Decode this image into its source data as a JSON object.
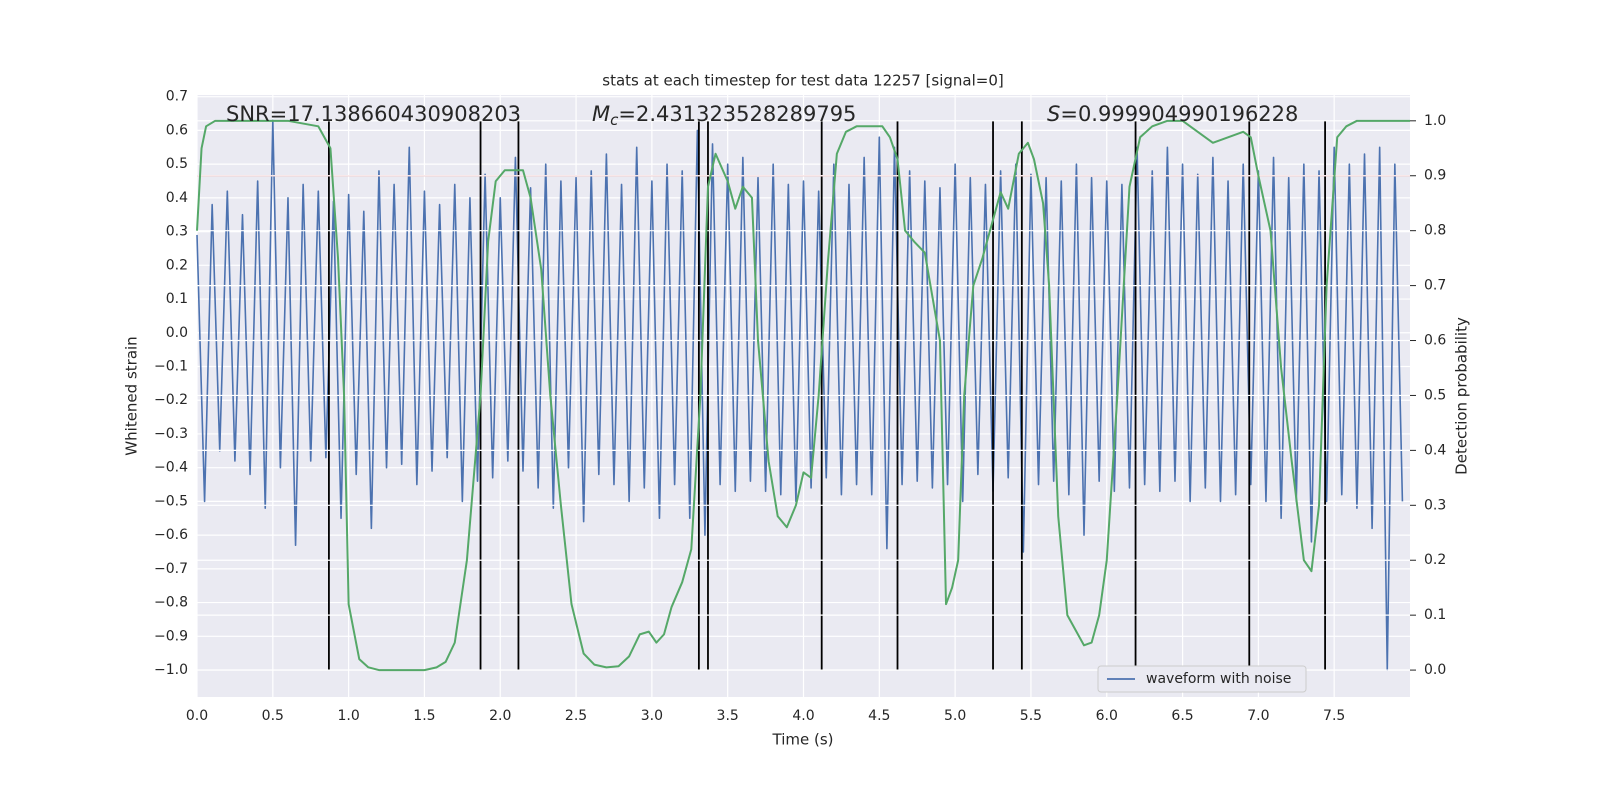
{
  "chart_data": {
    "type": "line",
    "title": "stats at each timestep for test data 12257 [signal=0]",
    "xlabel": "Time (s)",
    "ylabel": "Whitened strain",
    "y2label": "Detection probability",
    "annotations": [
      {
        "text": "SNR=17.138660430908203"
      },
      {
        "symbol": "M",
        "sub": "c",
        "text": "=2.431323528289795"
      },
      {
        "symbol": "S",
        "text": "=0.999904990196228"
      }
    ],
    "xlim": [
      0,
      8
    ],
    "xticks": [
      {
        "value": 0,
        "label": "0.0"
      },
      0.5,
      {
        "value": 1,
        "label": "1.0"
      },
      1.5,
      {
        "value": 2,
        "label": "2.0"
      },
      2.5,
      {
        "value": 3,
        "label": "3.0"
      },
      3.5,
      {
        "value": 4,
        "label": "4.0"
      },
      4.5,
      {
        "value": 5,
        "label": "5.0"
      },
      5.5,
      {
        "value": 6,
        "label": "6.0"
      },
      6.5,
      {
        "value": 7,
        "label": "7.0"
      },
      7.5
    ],
    "ylim": [
      -1.08,
      0.705
    ],
    "yticks": [
      {
        "value": -1,
        "label": "−1.0"
      },
      {
        "value": -0.9,
        "label": "−0.9"
      },
      {
        "value": -0.8,
        "label": "−0.8"
      },
      {
        "value": -0.7,
        "label": "−0.7"
      },
      {
        "value": -0.6,
        "label": "−0.6"
      },
      {
        "value": -0.5,
        "label": "−0.5"
      },
      {
        "value": -0.4,
        "label": "−0.4"
      },
      {
        "value": -0.3,
        "label": "−0.3"
      },
      {
        "value": -0.2,
        "label": "−0.2"
      },
      {
        "value": -0.1,
        "label": "−0.1"
      },
      {
        "value": 0,
        "label": "0.0"
      },
      0.1,
      0.2,
      0.3,
      0.4,
      0.5,
      0.6,
      0.7
    ],
    "y2lim": [
      -0.049,
      1.047
    ],
    "y2ticks": [
      {
        "value": 0,
        "label": "0.0"
      },
      0.1,
      0.2,
      0.3,
      0.4,
      0.5,
      0.6,
      0.7,
      0.8,
      0.9,
      {
        "value": 1,
        "label": "1.0"
      }
    ],
    "grid": true,
    "legend": "lower right",
    "series": [
      {
        "name": "waveform with noise",
        "color": "#4c72b0",
        "x": [
          0,
          0.05,
          0.1,
          0.15,
          0.2,
          0.25,
          0.3,
          0.35,
          0.4,
          0.45,
          0.5,
          0.55,
          0.6,
          0.65,
          0.7,
          0.75,
          0.8,
          0.85,
          0.9,
          0.95,
          1,
          1.05,
          1.1,
          1.15,
          1.2,
          1.25,
          1.3,
          1.35,
          1.4,
          1.45,
          1.5,
          1.55,
          1.6,
          1.65,
          1.7,
          1.75,
          1.8,
          1.85,
          1.9,
          1.95,
          2,
          2.05,
          2.1,
          2.15,
          2.2,
          2.25,
          2.3,
          2.35,
          2.4,
          2.45,
          2.5,
          2.55,
          2.6,
          2.65,
          2.7,
          2.75,
          2.8,
          2.85,
          2.9,
          2.95,
          3,
          3.05,
          3.1,
          3.15,
          3.2,
          3.25,
          3.3,
          3.35,
          3.4,
          3.45,
          3.5,
          3.55,
          3.6,
          3.65,
          3.7,
          3.75,
          3.8,
          3.85,
          3.9,
          3.95,
          4,
          4.05,
          4.1,
          4.15,
          4.2,
          4.25,
          4.3,
          4.35,
          4.4,
          4.45,
          4.5,
          4.55,
          4.6,
          4.65,
          4.7,
          4.75,
          4.8,
          4.85,
          4.9,
          4.95,
          5,
          5.05,
          5.1,
          5.15,
          5.2,
          5.25,
          5.3,
          5.35,
          5.4,
          5.45,
          5.5,
          5.55,
          5.6,
          5.65,
          5.7,
          5.75,
          5.8,
          5.85,
          5.9,
          5.95,
          6,
          6.05,
          6.1,
          6.15,
          6.2,
          6.25,
          6.3,
          6.35,
          6.4,
          6.45,
          6.5,
          6.55,
          6.6,
          6.65,
          6.7,
          6.75,
          6.8,
          6.85,
          6.9,
          6.95,
          7,
          7.05,
          7.1,
          7.15,
          7.2,
          7.25,
          7.3,
          7.35,
          7.4,
          7.45,
          7.5,
          7.55,
          7.6,
          7.65,
          7.7,
          7.75,
          7.8,
          7.85,
          7.9,
          7.95
        ],
        "values": [
          0.29,
          -0.5,
          0.38,
          -0.35,
          0.42,
          -0.38,
          0.35,
          -0.42,
          0.45,
          -0.52,
          0.63,
          -0.4,
          0.4,
          -0.63,
          0.44,
          -0.38,
          0.42,
          -0.37,
          0.39,
          -0.55,
          0.41,
          -0.42,
          0.36,
          -0.58,
          0.48,
          -0.4,
          0.44,
          -0.39,
          0.55,
          -0.45,
          0.42,
          -0.41,
          0.38,
          -0.37,
          0.44,
          -0.5,
          0.4,
          -0.44,
          0.47,
          -0.43,
          0.4,
          -0.38,
          0.52,
          -0.41,
          0.43,
          -0.46,
          0.5,
          -0.52,
          0.45,
          -0.4,
          0.46,
          -0.56,
          0.48,
          -0.42,
          0.53,
          -0.45,
          0.44,
          -0.5,
          0.55,
          -0.46,
          0.45,
          -0.55,
          0.5,
          -0.45,
          0.48,
          -0.55,
          0.6,
          -0.6,
          0.56,
          -0.45,
          0.5,
          -0.47,
          0.52,
          -0.44,
          0.46,
          -0.47,
          0.5,
          -0.48,
          0.44,
          -0.5,
          0.45,
          -0.46,
          0.42,
          -0.43,
          0.5,
          -0.48,
          0.44,
          -0.45,
          0.52,
          -0.48,
          0.58,
          -0.64,
          0.55,
          -0.45,
          0.48,
          -0.44,
          0.45,
          -0.46,
          0.43,
          -0.45,
          0.5,
          -0.5,
          0.46,
          -0.42,
          0.44,
          -0.47,
          0.48,
          -0.43,
          0.5,
          -0.65,
          0.47,
          -0.45,
          0.46,
          -0.44,
          0.45,
          -0.48,
          0.5,
          -0.6,
          0.46,
          -0.44,
          0.45,
          -0.47,
          0.44,
          -0.46,
          0.55,
          -0.45,
          0.48,
          -0.47,
          0.55,
          -0.44,
          0.5,
          -0.5,
          0.47,
          -0.46,
          0.52,
          -0.5,
          0.45,
          -0.48,
          0.5,
          -0.45,
          0.48,
          -0.5,
          0.52,
          -0.55,
          0.46,
          -0.5,
          0.5,
          -0.62,
          0.48,
          -0.5,
          0.55,
          -0.48,
          0.5,
          -0.52,
          0.53,
          -0.58,
          0.55,
          -1.0,
          0.5,
          -0.5
        ]
      },
      {
        "color": "#55a868",
        "axis": "y2",
        "x": [
          0,
          0.03,
          0.06,
          0.12,
          0.2,
          0.4,
          0.6,
          0.8,
          0.88,
          0.93,
          0.97,
          1,
          1.07,
          1.13,
          1.2,
          1.5,
          1.58,
          1.64,
          1.7,
          1.78,
          1.87,
          1.92,
          1.97,
          2.03,
          2.15,
          2.2,
          2.27,
          2.33,
          2.4,
          2.47,
          2.55,
          2.62,
          2.7,
          2.78,
          2.85,
          2.92,
          2.98,
          3.03,
          3.08,
          3.13,
          3.2,
          3.26,
          3.32,
          3.37,
          3.42,
          3.5,
          3.55,
          3.6,
          3.66,
          3.7,
          3.77,
          3.83,
          3.89,
          3.95,
          4,
          4.05,
          4.1,
          4.16,
          4.22,
          4.28,
          4.35,
          4.45,
          4.52,
          4.57,
          4.62,
          4.67,
          4.73,
          4.8,
          4.85,
          4.9,
          4.94,
          4.98,
          5.02,
          5.06,
          5.12,
          5.18,
          5.25,
          5.3,
          5.35,
          5.42,
          5.48,
          5.52,
          5.58,
          5.62,
          5.68,
          5.74,
          5.8,
          5.85,
          5.9,
          5.95,
          6,
          6.07,
          6.15,
          6.22,
          6.3,
          6.4,
          6.5,
          6.55,
          6.6,
          6.7,
          6.8,
          6.9,
          6.95,
          7,
          7.08,
          7.15,
          7.22,
          7.3,
          7.35,
          7.4,
          7.45,
          7.52,
          7.58,
          7.65,
          8
        ],
        "values": [
          0.8,
          0.95,
          0.99,
          1,
          1,
          1,
          1,
          0.99,
          0.95,
          0.75,
          0.5,
          0.12,
          0.02,
          0.005,
          0,
          0,
          0.005,
          0.015,
          0.05,
          0.2,
          0.5,
          0.78,
          0.89,
          0.91,
          0.91,
          0.86,
          0.73,
          0.5,
          0.3,
          0.12,
          0.03,
          0.01,
          0.005,
          0.007,
          0.025,
          0.065,
          0.07,
          0.05,
          0.065,
          0.115,
          0.16,
          0.22,
          0.5,
          0.88,
          0.94,
          0.89,
          0.84,
          0.88,
          0.86,
          0.6,
          0.38,
          0.28,
          0.26,
          0.3,
          0.36,
          0.35,
          0.5,
          0.74,
          0.94,
          0.98,
          0.99,
          0.99,
          0.99,
          0.97,
          0.93,
          0.8,
          0.78,
          0.76,
          0.68,
          0.6,
          0.12,
          0.15,
          0.2,
          0.5,
          0.7,
          0.75,
          0.82,
          0.87,
          0.84,
          0.94,
          0.96,
          0.93,
          0.85,
          0.7,
          0.28,
          0.1,
          0.07,
          0.045,
          0.05,
          0.1,
          0.2,
          0.5,
          0.88,
          0.97,
          0.99,
          1,
          1,
          0.99,
          0.98,
          0.96,
          0.97,
          0.98,
          0.97,
          0.9,
          0.8,
          0.55,
          0.38,
          0.2,
          0.18,
          0.3,
          0.7,
          0.97,
          0.99,
          1,
          1
        ]
      }
    ],
    "threshold": {
      "value": 0.9,
      "axis": "y2",
      "color": "#c44e52"
    },
    "vlines": [
      0.87,
      1.87,
      2.12,
      3.31,
      3.37,
      4.12,
      4.62,
      5.25,
      5.44,
      6.19,
      6.94,
      7.44
    ],
    "vline_color": "#000000"
  }
}
